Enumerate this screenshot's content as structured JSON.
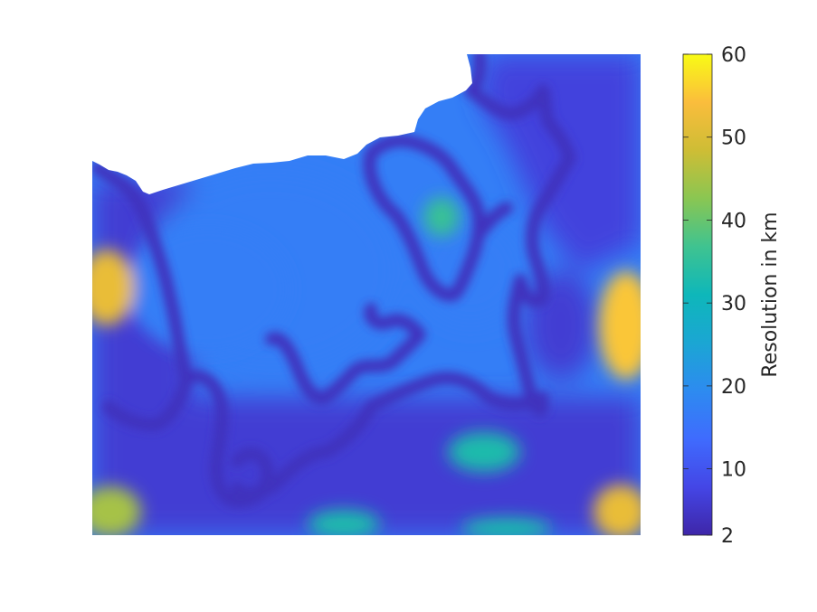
{
  "chart_data": {
    "type": "heatmap",
    "title": "",
    "xlabel": "",
    "ylabel": "",
    "colormap": "parula",
    "colorbar": {
      "label": "Resolution in km",
      "clim": [
        2,
        60
      ],
      "ticks": [
        2,
        10,
        20,
        30,
        40,
        50,
        60
      ],
      "tick_labels": [
        "2",
        "10",
        "20",
        "30",
        "40",
        "50",
        "60"
      ]
    },
    "axes_visible": false,
    "background_value": 17,
    "channel_value": 4,
    "masked_color": "#ffffff",
    "regions": [
      {
        "name": "interior",
        "value": 17
      },
      {
        "name": "channels",
        "value": 4
      },
      {
        "name": "basin-margins",
        "value": 6
      },
      {
        "name": "upper-right-highland",
        "value": 7
      },
      {
        "name": "left-edge-peak",
        "value": 52
      },
      {
        "name": "right-edge-peak",
        "value": 55
      },
      {
        "name": "lower-left-corner",
        "value": 45
      },
      {
        "name": "lower-right-corner",
        "value": 52
      },
      {
        "name": "inner-ring-center",
        "value": 36
      },
      {
        "name": "lower-middle-patch",
        "value": 33
      }
    ]
  }
}
